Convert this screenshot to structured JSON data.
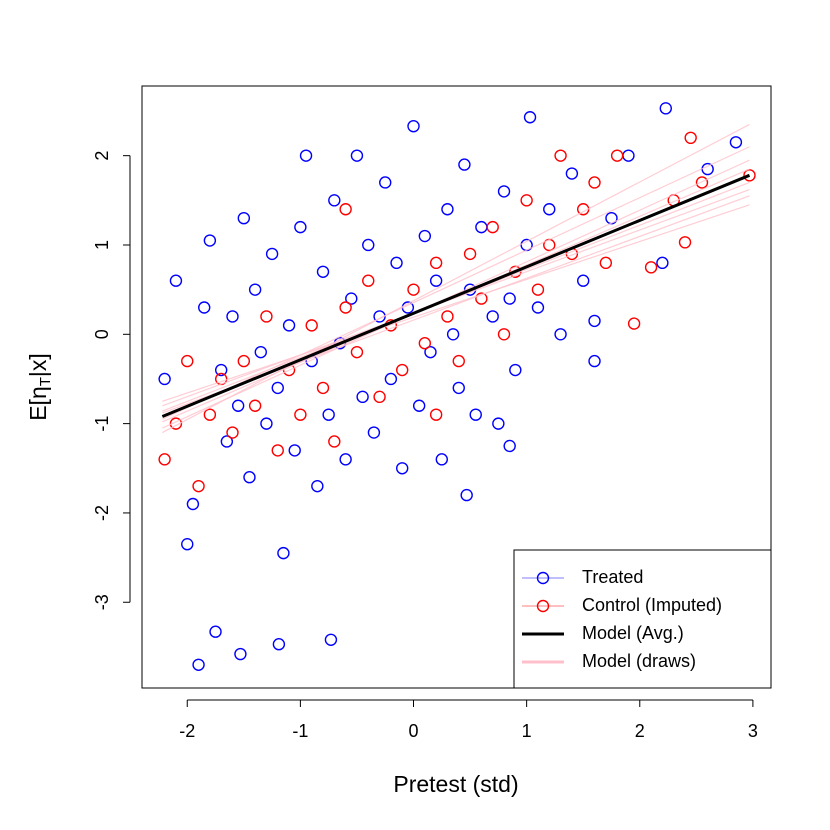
{
  "chart_data": {
    "type": "scatter",
    "xlabel": "Pretest (std)",
    "ylabel": [
      "E[η",
      "T",
      "|x]"
    ],
    "xlim": [
      -2.4,
      3.16
    ],
    "ylim": [
      -3.96,
      2.78
    ],
    "xticks": [
      -2,
      -1,
      0,
      1,
      2,
      3
    ],
    "yticks": [
      -3,
      -2,
      -1,
      0,
      1,
      2
    ],
    "legend": "bottomright",
    "series": [
      {
        "name": "Treated",
        "color": "#0000ff",
        "kind": "points",
        "x": [
          -2.2,
          -2.1,
          -2.0,
          -1.95,
          -1.85,
          -1.8,
          -1.7,
          -1.65,
          -1.6,
          -1.55,
          -1.5,
          -1.45,
          -1.4,
          -1.35,
          -1.3,
          -1.25,
          -1.2,
          -1.15,
          -1.1,
          -1.05,
          -1.0,
          -0.95,
          -0.9,
          -0.85,
          -0.8,
          -0.75,
          -0.7,
          -0.65,
          -0.6,
          -0.55,
          -0.5,
          -0.45,
          -0.4,
          -0.35,
          -0.3,
          -0.25,
          -0.2,
          -0.15,
          -0.1,
          -0.05,
          0.0,
          0.05,
          0.1,
          0.15,
          0.2,
          0.25,
          0.3,
          0.35,
          0.4,
          0.45,
          0.5,
          0.55,
          0.6,
          0.7,
          0.75,
          0.8,
          0.85,
          0.9,
          1.0,
          1.03,
          1.1,
          1.2,
          1.3,
          1.4,
          1.5,
          1.6,
          1.75,
          1.9,
          2.23,
          2.2,
          2.6,
          2.85,
          -1.9,
          -1.75,
          -1.53,
          -1.19,
          -0.73,
          0.47,
          0.85,
          1.6
        ],
        "values": [
          -0.5,
          0.6,
          -2.35,
          -1.9,
          0.3,
          1.05,
          -0.4,
          -1.2,
          0.2,
          -0.8,
          1.3,
          -1.6,
          0.5,
          -0.2,
          -1.0,
          0.9,
          -0.6,
          -2.45,
          0.1,
          -1.3,
          1.2,
          2.0,
          -0.3,
          -1.7,
          0.7,
          -0.9,
          1.5,
          -0.1,
          -1.4,
          0.4,
          2.0,
          -0.7,
          1.0,
          -1.1,
          0.2,
          1.7,
          -0.5,
          0.8,
          -1.5,
          0.3,
          2.33,
          -0.8,
          1.1,
          -0.2,
          0.6,
          -1.4,
          1.4,
          0.0,
          -0.6,
          1.9,
          0.5,
          -0.9,
          1.2,
          0.2,
          -1.0,
          1.6,
          0.4,
          -0.4,
          1.0,
          2.43,
          0.3,
          1.4,
          0.0,
          1.8,
          0.6,
          -0.3,
          1.3,
          2.0,
          2.53,
          0.8,
          1.85,
          2.15,
          -3.7,
          -3.33,
          -3.58,
          -3.47,
          -3.42,
          -1.8,
          -1.25,
          0.15
        ]
      },
      {
        "name": "Control (Imputed)",
        "color": "#ff0000",
        "kind": "points",
        "x": [
          -2.2,
          -2.1,
          -2.0,
          -1.9,
          -1.8,
          -1.7,
          -1.6,
          -1.5,
          -1.4,
          -1.3,
          -1.2,
          -1.1,
          -1.0,
          -0.9,
          -0.8,
          -0.7,
          -0.6,
          -0.5,
          -0.4,
          -0.3,
          -0.2,
          -0.1,
          0.0,
          0.1,
          0.2,
          0.3,
          0.4,
          0.5,
          0.6,
          0.7,
          0.8,
          0.9,
          1.0,
          1.1,
          1.2,
          1.3,
          1.4,
          1.5,
          1.6,
          1.7,
          1.8,
          1.95,
          2.1,
          2.3,
          2.4,
          2.45,
          2.55,
          2.97,
          -0.6,
          0.2
        ],
        "values": [
          -1.4,
          -1.0,
          -0.3,
          -1.7,
          -0.9,
          -0.5,
          -1.1,
          -0.3,
          -0.8,
          0.2,
          -1.3,
          -0.4,
          -0.9,
          0.1,
          -0.6,
          -1.2,
          0.3,
          -0.2,
          0.6,
          -0.7,
          0.1,
          -0.4,
          0.5,
          -0.1,
          0.8,
          0.2,
          -0.3,
          0.9,
          0.4,
          1.2,
          0.0,
          0.7,
          1.5,
          0.5,
          1.0,
          2.0,
          0.9,
          1.4,
          1.7,
          0.8,
          2.0,
          0.12,
          0.75,
          1.5,
          1.03,
          2.2,
          1.7,
          1.78,
          1.4,
          -0.9
        ]
      },
      {
        "name": "Model (draws)",
        "color": "#ffc0cb",
        "kind": "lines",
        "lines": [
          {
            "x": [
              -2.22,
              2.97
            ],
            "values": [
              -1.05,
              1.95
            ]
          },
          {
            "x": [
              -2.22,
              2.97
            ],
            "values": [
              -0.8,
              1.62
            ]
          },
          {
            "x": [
              -2.22,
              2.97
            ],
            "values": [
              -0.98,
              1.85
            ]
          },
          {
            "x": [
              -2.22,
              2.97
            ],
            "values": [
              -0.86,
              1.7
            ]
          },
          {
            "x": [
              -2.22,
              2.97
            ],
            "values": [
              -1.1,
              2.35
            ]
          },
          {
            "x": [
              -2.22,
              2.97
            ],
            "values": [
              -0.75,
              1.45
            ]
          },
          {
            "x": [
              -2.22,
              2.97
            ],
            "values": [
              -0.95,
              2.1
            ]
          },
          {
            "x": [
              -2.22,
              2.97
            ],
            "values": [
              -0.88,
              1.55
            ]
          }
        ]
      },
      {
        "name": "Model (Avg.)",
        "color": "#000000",
        "kind": "line",
        "x": [
          -2.22,
          2.97
        ],
        "values": [
          -0.92,
          1.78
        ]
      }
    ]
  }
}
